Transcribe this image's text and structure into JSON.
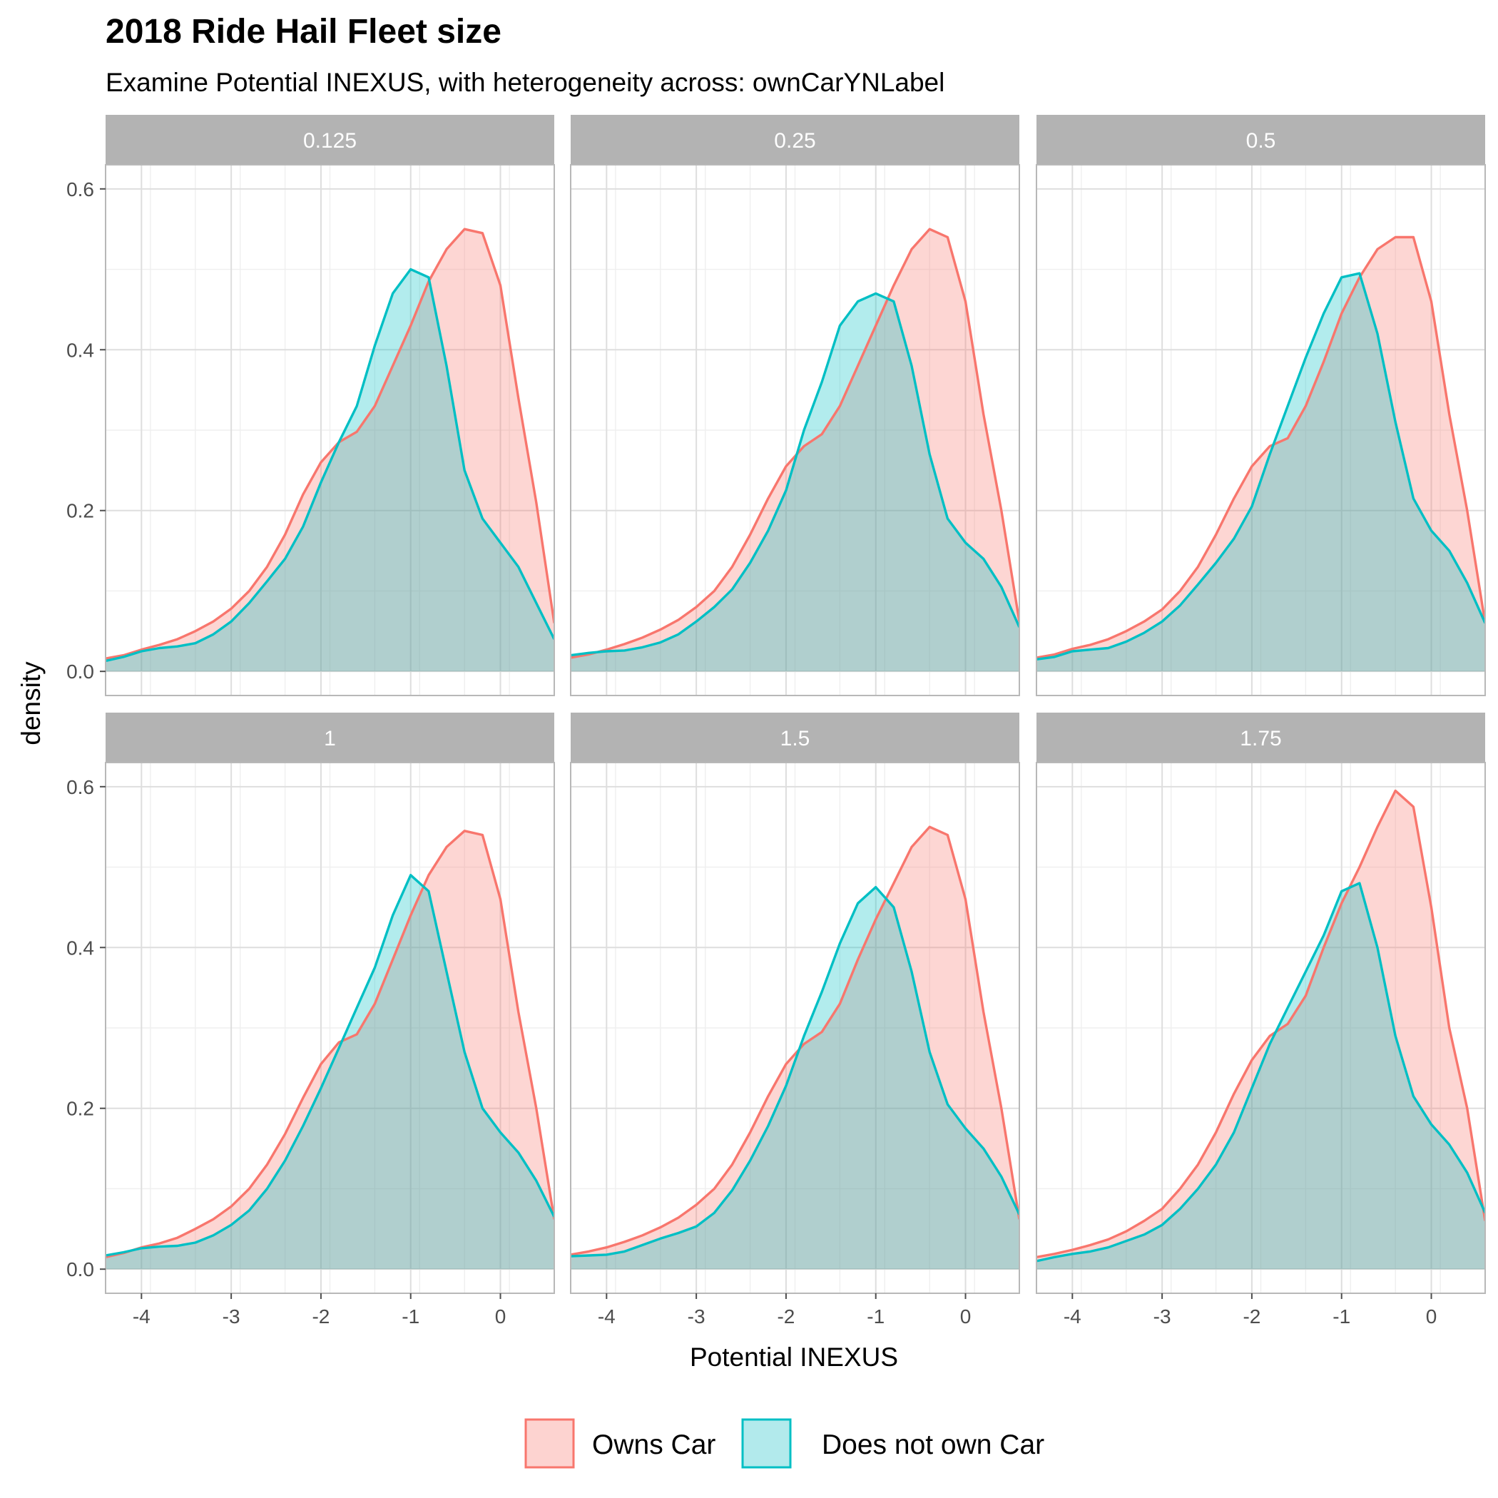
{
  "chart_data": {
    "type": "area",
    "chart_subtype": "faceted density",
    "title": "2018 Ride Hail Fleet size",
    "subtitle": "Examine Potential INEXUS, with heterogeneity across: ownCarYNLabel",
    "xlabel": "Potential INEXUS",
    "ylabel": "density",
    "xlim": [
      -4.4,
      0.6
    ],
    "ylim": [
      -0.03,
      0.63
    ],
    "x_ticks": [
      -4,
      -3,
      -2,
      -1,
      0
    ],
    "x_tick_labels": [
      "-4",
      "-3",
      "-2",
      "-1",
      "0"
    ],
    "y_ticks": [
      0.0,
      0.2,
      0.4,
      0.6
    ],
    "y_tick_labels": [
      "0.0",
      "0.2",
      "0.4",
      "0.6"
    ],
    "grid": true,
    "facet_layout": {
      "rows": 2,
      "cols": 3
    },
    "legend": {
      "position": "bottom",
      "entries": [
        {
          "label": "Owns Car",
          "line_color": "#F8766D",
          "fill_color": "#FDD3D0"
        },
        {
          "label": "Does not own Car",
          "line_color": "#00BFC4",
          "fill_color": "#B2EAEC"
        }
      ]
    },
    "overlap_fill_color": "#B4CDCC",
    "series_names": [
      "Owns Car",
      "Does not own Car"
    ],
    "panels": [
      {
        "label": "0.125",
        "series": [
          {
            "name": "Owns Car",
            "x": [
              -4.4,
              -4.2,
              -4.0,
              -3.8,
              -3.6,
              -3.4,
              -3.2,
              -3.0,
              -2.8,
              -2.6,
              -2.4,
              -2.2,
              -2.0,
              -1.8,
              -1.6,
              -1.4,
              -1.2,
              -1.0,
              -0.8,
              -0.6,
              -0.4,
              -0.2,
              0.0,
              0.2,
              0.4,
              0.6
            ],
            "y": [
              0.016,
              0.02,
              0.027,
              0.033,
              0.04,
              0.05,
              0.062,
              0.078,
              0.1,
              0.13,
              0.17,
              0.22,
              0.26,
              0.285,
              0.298,
              0.33,
              0.38,
              0.43,
              0.485,
              0.525,
              0.55,
              0.545,
              0.48,
              0.34,
              0.21,
              0.06
            ]
          },
          {
            "name": "Does not own Car",
            "x": [
              -4.4,
              -4.2,
              -4.0,
              -3.8,
              -3.6,
              -3.4,
              -3.2,
              -3.0,
              -2.8,
              -2.6,
              -2.4,
              -2.2,
              -2.0,
              -1.8,
              -1.6,
              -1.4,
              -1.2,
              -1.0,
              -0.8,
              -0.6,
              -0.4,
              -0.2,
              0.0,
              0.2,
              0.4,
              0.6
            ],
            "y": [
              0.013,
              0.018,
              0.025,
              0.029,
              0.031,
              0.035,
              0.046,
              0.062,
              0.085,
              0.112,
              0.14,
              0.18,
              0.235,
              0.285,
              0.33,
              0.405,
              0.47,
              0.5,
              0.49,
              0.38,
              0.25,
              0.19,
              0.16,
              0.13,
              0.085,
              0.04
            ]
          }
        ]
      },
      {
        "label": "0.25",
        "series": [
          {
            "name": "Owns Car",
            "x": [
              -4.4,
              -4.2,
              -4.0,
              -3.8,
              -3.6,
              -3.4,
              -3.2,
              -3.0,
              -2.8,
              -2.6,
              -2.4,
              -2.2,
              -2.0,
              -1.8,
              -1.6,
              -1.4,
              -1.2,
              -1.0,
              -0.8,
              -0.6,
              -0.4,
              -0.2,
              0.0,
              0.2,
              0.4,
              0.6
            ],
            "y": [
              0.017,
              0.021,
              0.027,
              0.034,
              0.042,
              0.052,
              0.064,
              0.08,
              0.1,
              0.13,
              0.17,
              0.215,
              0.255,
              0.28,
              0.295,
              0.33,
              0.38,
              0.43,
              0.48,
              0.525,
              0.55,
              0.54,
              0.46,
              0.32,
              0.2,
              0.062
            ]
          },
          {
            "name": "Does not own Car",
            "x": [
              -4.4,
              -4.2,
              -4.0,
              -3.8,
              -3.6,
              -3.4,
              -3.2,
              -3.0,
              -2.8,
              -2.6,
              -2.4,
              -2.2,
              -2.0,
              -1.8,
              -1.6,
              -1.4,
              -1.2,
              -1.0,
              -0.8,
              -0.6,
              -0.4,
              -0.2,
              0.0,
              0.2,
              0.4,
              0.6
            ],
            "y": [
              0.02,
              0.023,
              0.025,
              0.026,
              0.03,
              0.036,
              0.046,
              0.062,
              0.08,
              0.102,
              0.135,
              0.175,
              0.225,
              0.3,
              0.36,
              0.43,
              0.46,
              0.47,
              0.46,
              0.38,
              0.27,
              0.19,
              0.16,
              0.14,
              0.105,
              0.055
            ]
          }
        ]
      },
      {
        "label": "0.5",
        "series": [
          {
            "name": "Owns Car",
            "x": [
              -4.4,
              -4.2,
              -4.0,
              -3.8,
              -3.6,
              -3.4,
              -3.2,
              -3.0,
              -2.8,
              -2.6,
              -2.4,
              -2.2,
              -2.0,
              -1.8,
              -1.6,
              -1.4,
              -1.2,
              -1.0,
              -0.8,
              -0.6,
              -0.4,
              -0.2,
              0.0,
              0.2,
              0.4,
              0.6
            ],
            "y": [
              0.017,
              0.021,
              0.028,
              0.033,
              0.04,
              0.05,
              0.062,
              0.077,
              0.1,
              0.13,
              0.17,
              0.215,
              0.255,
              0.28,
              0.29,
              0.33,
              0.385,
              0.445,
              0.49,
              0.525,
              0.54,
              0.54,
              0.46,
              0.32,
              0.2,
              0.06
            ]
          },
          {
            "name": "Does not own Car",
            "x": [
              -4.4,
              -4.2,
              -4.0,
              -3.8,
              -3.6,
              -3.4,
              -3.2,
              -3.0,
              -2.8,
              -2.6,
              -2.4,
              -2.2,
              -2.0,
              -1.8,
              -1.6,
              -1.4,
              -1.2,
              -1.0,
              -0.8,
              -0.6,
              -0.4,
              -0.2,
              0.0,
              0.2,
              0.4,
              0.6
            ],
            "y": [
              0.015,
              0.018,
              0.025,
              0.027,
              0.029,
              0.037,
              0.048,
              0.062,
              0.082,
              0.108,
              0.135,
              0.165,
              0.205,
              0.27,
              0.33,
              0.39,
              0.445,
              0.49,
              0.495,
              0.42,
              0.31,
              0.215,
              0.175,
              0.15,
              0.11,
              0.06
            ]
          }
        ]
      },
      {
        "label": "1",
        "series": [
          {
            "name": "Owns Car",
            "x": [
              -4.4,
              -4.2,
              -4.0,
              -3.8,
              -3.6,
              -3.4,
              -3.2,
              -3.0,
              -2.8,
              -2.6,
              -2.4,
              -2.2,
              -2.0,
              -1.8,
              -1.6,
              -1.4,
              -1.2,
              -1.0,
              -0.8,
              -0.6,
              -0.4,
              -0.2,
              0.0,
              0.2,
              0.4,
              0.6
            ],
            "y": [
              0.015,
              0.02,
              0.027,
              0.032,
              0.039,
              0.05,
              0.062,
              0.078,
              0.1,
              0.13,
              0.168,
              0.213,
              0.255,
              0.282,
              0.292,
              0.33,
              0.385,
              0.44,
              0.49,
              0.525,
              0.545,
              0.54,
              0.46,
              0.32,
              0.2,
              0.062
            ]
          },
          {
            "name": "Does not own Car",
            "x": [
              -4.4,
              -4.2,
              -4.0,
              -3.8,
              -3.6,
              -3.4,
              -3.2,
              -3.0,
              -2.8,
              -2.6,
              -2.4,
              -2.2,
              -2.0,
              -1.8,
              -1.6,
              -1.4,
              -1.2,
              -1.0,
              -0.8,
              -0.6,
              -0.4,
              -0.2,
              0.0,
              0.2,
              0.4,
              0.6
            ],
            "y": [
              0.017,
              0.021,
              0.026,
              0.028,
              0.029,
              0.033,
              0.042,
              0.055,
              0.073,
              0.1,
              0.135,
              0.178,
              0.225,
              0.275,
              0.325,
              0.375,
              0.44,
              0.49,
              0.47,
              0.37,
              0.27,
              0.2,
              0.17,
              0.145,
              0.11,
              0.065
            ]
          }
        ]
      },
      {
        "label": "1.5",
        "series": [
          {
            "name": "Owns Car",
            "x": [
              -4.4,
              -4.2,
              -4.0,
              -3.8,
              -3.6,
              -3.4,
              -3.2,
              -3.0,
              -2.8,
              -2.6,
              -2.4,
              -2.2,
              -2.0,
              -1.8,
              -1.6,
              -1.4,
              -1.2,
              -1.0,
              -0.8,
              -0.6,
              -0.4,
              -0.2,
              0.0,
              0.2,
              0.4,
              0.6
            ],
            "y": [
              0.018,
              0.022,
              0.027,
              0.034,
              0.042,
              0.052,
              0.064,
              0.08,
              0.1,
              0.13,
              0.17,
              0.215,
              0.255,
              0.28,
              0.295,
              0.33,
              0.385,
              0.435,
              0.48,
              0.525,
              0.55,
              0.54,
              0.46,
              0.32,
              0.2,
              0.062
            ]
          },
          {
            "name": "Does not own Car",
            "x": [
              -4.4,
              -4.2,
              -4.0,
              -3.8,
              -3.6,
              -3.4,
              -3.2,
              -3.0,
              -2.8,
              -2.6,
              -2.4,
              -2.2,
              -2.0,
              -1.8,
              -1.6,
              -1.4,
              -1.2,
              -1.0,
              -0.8,
              -0.6,
              -0.4,
              -0.2,
              0.0,
              0.2,
              0.4,
              0.6
            ],
            "y": [
              0.016,
              0.017,
              0.018,
              0.022,
              0.03,
              0.038,
              0.045,
              0.053,
              0.07,
              0.098,
              0.135,
              0.178,
              0.228,
              0.29,
              0.345,
              0.405,
              0.455,
              0.475,
              0.45,
              0.37,
              0.27,
              0.205,
              0.175,
              0.15,
              0.115,
              0.068
            ]
          }
        ]
      },
      {
        "label": "1.75",
        "series": [
          {
            "name": "Owns Car",
            "x": [
              -4.4,
              -4.2,
              -4.0,
              -3.8,
              -3.6,
              -3.4,
              -3.2,
              -3.0,
              -2.8,
              -2.6,
              -2.4,
              -2.2,
              -2.0,
              -1.8,
              -1.6,
              -1.4,
              -1.2,
              -1.0,
              -0.8,
              -0.6,
              -0.4,
              -0.2,
              0.0,
              0.2,
              0.4,
              0.6
            ],
            "y": [
              0.015,
              0.019,
              0.024,
              0.03,
              0.037,
              0.047,
              0.06,
              0.075,
              0.1,
              0.13,
              0.17,
              0.218,
              0.26,
              0.29,
              0.305,
              0.34,
              0.4,
              0.455,
              0.5,
              0.55,
              0.595,
              0.575,
              0.45,
              0.3,
              0.2,
              0.06
            ]
          },
          {
            "name": "Does not own Car",
            "x": [
              -4.4,
              -4.2,
              -4.0,
              -3.8,
              -3.6,
              -3.4,
              -3.2,
              -3.0,
              -2.8,
              -2.6,
              -2.4,
              -2.2,
              -2.0,
              -1.8,
              -1.6,
              -1.4,
              -1.2,
              -1.0,
              -0.8,
              -0.6,
              -0.4,
              -0.2,
              0.0,
              0.2,
              0.4,
              0.6
            ],
            "y": [
              0.01,
              0.015,
              0.019,
              0.022,
              0.027,
              0.035,
              0.043,
              0.055,
              0.075,
              0.1,
              0.13,
              0.17,
              0.225,
              0.28,
              0.325,
              0.37,
              0.415,
              0.47,
              0.48,
              0.4,
              0.29,
              0.215,
              0.18,
              0.155,
              0.12,
              0.07
            ]
          }
        ]
      }
    ]
  },
  "colors": {
    "strip_bg": "#B3B3B3",
    "grid_major": "#DEDEDE",
    "grid_minor": "#EFEFEF",
    "panel_border": "#B8B8B8",
    "tick_color": "#4D4D4D"
  }
}
